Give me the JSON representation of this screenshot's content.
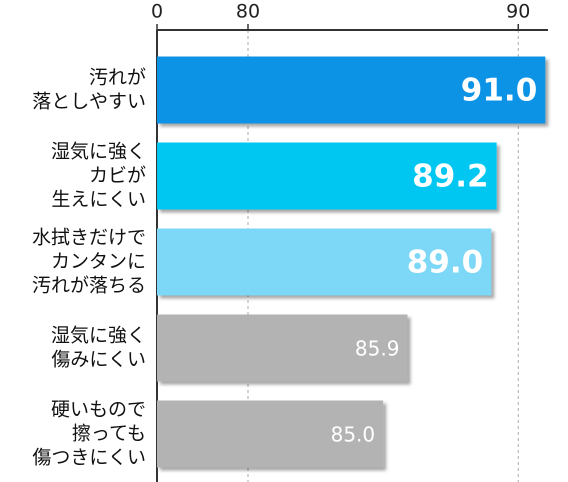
{
  "chart_data": {
    "type": "hbar",
    "categories": [
      [
        "汚れが",
        "落としやすい"
      ],
      [
        "湿気に強く",
        "カビが",
        "生えにくい"
      ],
      [
        "水拭きだけで",
        "カンタンに",
        "汚れが落ちる"
      ],
      [
        "湿気に強く",
        "傷みにくい"
      ],
      [
        "硬いもので",
        "擦っても",
        "傷つきにくい"
      ]
    ],
    "values": [
      91.0,
      89.2,
      89.0,
      85.9,
      85.0
    ],
    "value_labels": [
      "91.0",
      "89.2",
      "89.0",
      "85.9",
      "85.0"
    ],
    "colors": [
      "#0b93e6",
      "#00c6f2",
      "#7dd8f7",
      "#b3b3b3",
      "#b3b3b3"
    ],
    "highlight": [
      true,
      true,
      true,
      false,
      false
    ],
    "xlim": [
      0,
      91.1
    ],
    "xticks": [
      0,
      80,
      90
    ],
    "axis_break": true,
    "grid": true
  }
}
